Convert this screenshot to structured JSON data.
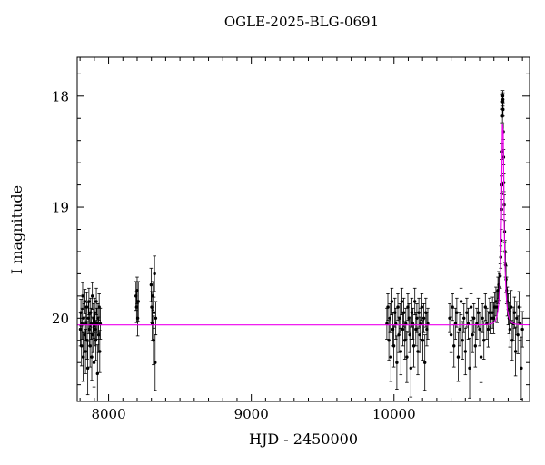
{
  "chart_data": {
    "type": "scatter",
    "title": "OGLE-2025-BLG-0691",
    "axes": {
      "x": {
        "label": "HJD - 2450000",
        "min": 7780,
        "max": 10950,
        "major_ticks": [
          8000,
          9000,
          10000
        ],
        "minor_step": 100
      },
      "y": {
        "label": "I magnitude",
        "min": 17.65,
        "max": 20.75,
        "major_ticks": [
          18,
          19,
          20
        ],
        "minor_step": 0.2,
        "inverted": true
      }
    },
    "style": {
      "background": "#ffffff",
      "frame_color": "#000000",
      "point_color": "#000000",
      "errorbar_color": "#000000",
      "model_color": "#ee00ee"
    },
    "model": {
      "type": "paczynski-microlensing",
      "t0": 10762,
      "tE": 22,
      "u0": 0.135,
      "baseline_mag": 20.06,
      "peak_mag": 17.88
    },
    "points": [
      [
        7802,
        20.1,
        0.15
      ],
      [
        7806,
        19.95,
        0.12
      ],
      [
        7810,
        20.25,
        0.18
      ],
      [
        7814,
        20.05,
        0.14
      ],
      [
        7818,
        19.8,
        0.12
      ],
      [
        7822,
        20.35,
        0.22
      ],
      [
        7826,
        20.0,
        0.13
      ],
      [
        7830,
        20.15,
        0.16
      ],
      [
        7834,
        19.85,
        0.11
      ],
      [
        7838,
        20.3,
        0.2
      ],
      [
        7842,
        20.05,
        0.15
      ],
      [
        7846,
        19.9,
        0.13
      ],
      [
        7850,
        20.2,
        0.17
      ],
      [
        7854,
        20.45,
        0.24
      ],
      [
        7858,
        20.0,
        0.14
      ],
      [
        7862,
        19.85,
        0.12
      ],
      [
        7866,
        20.1,
        0.15
      ],
      [
        7870,
        20.25,
        0.19
      ],
      [
        7874,
        19.95,
        0.13
      ],
      [
        7878,
        20.05,
        0.14
      ],
      [
        7882,
        20.35,
        0.21
      ],
      [
        7886,
        19.8,
        0.12
      ],
      [
        7890,
        20.15,
        0.16
      ],
      [
        7894,
        20.0,
        0.13
      ],
      [
        7898,
        20.4,
        0.22
      ],
      [
        7902,
        19.95,
        0.13
      ],
      [
        7906,
        20.1,
        0.15
      ],
      [
        7910,
        20.2,
        0.18
      ],
      [
        7914,
        19.85,
        0.12
      ],
      [
        7918,
        20.05,
        0.14
      ],
      [
        7922,
        20.5,
        0.26
      ],
      [
        7926,
        20.0,
        0.13
      ],
      [
        7930,
        20.15,
        0.16
      ],
      [
        7934,
        19.9,
        0.12
      ],
      [
        7938,
        20.3,
        0.19
      ],
      [
        7942,
        20.05,
        0.14
      ],
      [
        8192,
        19.8,
        0.13
      ],
      [
        8196,
        19.9,
        0.14
      ],
      [
        8200,
        19.75,
        0.12
      ],
      [
        8204,
        20.0,
        0.16
      ],
      [
        8208,
        19.85,
        0.18
      ],
      [
        8298,
        19.7,
        0.15
      ],
      [
        8302,
        19.9,
        0.14
      ],
      [
        8306,
        20.05,
        0.15
      ],
      [
        8310,
        19.8,
        0.13
      ],
      [
        8314,
        20.2,
        0.22
      ],
      [
        8318,
        19.95,
        0.14
      ],
      [
        8322,
        19.6,
        0.16
      ],
      [
        8326,
        20.4,
        0.25
      ],
      [
        8330,
        20.0,
        0.15
      ],
      [
        9950,
        20.05,
        0.14
      ],
      [
        9957,
        19.9,
        0.12
      ],
      [
        9964,
        20.2,
        0.18
      ],
      [
        9971,
        20.0,
        0.13
      ],
      [
        9978,
        20.35,
        0.22
      ],
      [
        9985,
        19.85,
        0.12
      ],
      [
        9992,
        20.1,
        0.15
      ],
      [
        9999,
        20.25,
        0.19
      ],
      [
        10006,
        19.95,
        0.13
      ],
      [
        10013,
        20.05,
        0.14
      ],
      [
        10020,
        20.4,
        0.24
      ],
      [
        10027,
        19.9,
        0.12
      ],
      [
        10034,
        20.15,
        0.16
      ],
      [
        10041,
        20.0,
        0.13
      ],
      [
        10048,
        20.3,
        0.21
      ],
      [
        10055,
        19.85,
        0.12
      ],
      [
        10062,
        20.1,
        0.15
      ],
      [
        10069,
        19.95,
        0.13
      ],
      [
        10076,
        20.2,
        0.17
      ],
      [
        10083,
        20.05,
        0.14
      ],
      [
        10090,
        20.35,
        0.23
      ],
      [
        10097,
        19.9,
        0.12
      ],
      [
        10104,
        20.0,
        0.13
      ],
      [
        10111,
        20.15,
        0.16
      ],
      [
        10118,
        20.45,
        0.26
      ],
      [
        10125,
        19.95,
        0.13
      ],
      [
        10132,
        20.05,
        0.14
      ],
      [
        10139,
        20.25,
        0.19
      ],
      [
        10146,
        19.85,
        0.12
      ],
      [
        10153,
        20.1,
        0.15
      ],
      [
        10160,
        20.0,
        0.13
      ],
      [
        10167,
        20.3,
        0.21
      ],
      [
        10174,
        19.95,
        0.13
      ],
      [
        10181,
        20.15,
        0.16
      ],
      [
        10188,
        20.05,
        0.14
      ],
      [
        10195,
        19.9,
        0.12
      ],
      [
        10202,
        20.2,
        0.18
      ],
      [
        10209,
        20.0,
        0.13
      ],
      [
        10216,
        20.4,
        0.25
      ],
      [
        10223,
        19.95,
        0.13
      ],
      [
        10230,
        20.1,
        0.15
      ],
      [
        10237,
        20.05,
        0.14
      ],
      [
        10390,
        20.0,
        0.13
      ],
      [
        10400,
        20.15,
        0.16
      ],
      [
        10410,
        19.9,
        0.12
      ],
      [
        10420,
        20.25,
        0.19
      ],
      [
        10430,
        20.05,
        0.14
      ],
      [
        10440,
        19.95,
        0.13
      ],
      [
        10450,
        20.35,
        0.22
      ],
      [
        10460,
        20.1,
        0.15
      ],
      [
        10470,
        19.85,
        0.12
      ],
      [
        10480,
        20.2,
        0.17
      ],
      [
        10490,
        20.0,
        0.13
      ],
      [
        10500,
        20.3,
        0.21
      ],
      [
        10510,
        19.95,
        0.13
      ],
      [
        10520,
        20.05,
        0.14
      ],
      [
        10530,
        20.45,
        0.27
      ],
      [
        10540,
        19.9,
        0.12
      ],
      [
        10550,
        20.15,
        0.16
      ],
      [
        10560,
        20.0,
        0.13
      ],
      [
        10570,
        20.25,
        0.19
      ],
      [
        10580,
        20.05,
        0.14
      ],
      [
        10590,
        19.95,
        0.13
      ],
      [
        10600,
        20.1,
        0.15
      ],
      [
        10610,
        20.35,
        0.23
      ],
      [
        10620,
        20.0,
        0.13
      ],
      [
        10630,
        20.2,
        0.17
      ],
      [
        10640,
        19.9,
        0.12
      ],
      [
        10650,
        20.05,
        0.14
      ],
      [
        10660,
        20.1,
        0.16
      ],
      [
        10670,
        19.95,
        0.13
      ],
      [
        10680,
        20.0,
        0.14
      ],
      [
        10690,
        19.95,
        0.14
      ],
      [
        10698,
        20.0,
        0.14
      ],
      [
        10706,
        19.9,
        0.13
      ],
      [
        10714,
        19.85,
        0.13
      ],
      [
        10722,
        19.9,
        0.14
      ],
      [
        10728,
        19.75,
        0.12
      ],
      [
        10734,
        19.7,
        0.12
      ],
      [
        10740,
        19.72,
        0.12
      ],
      [
        10744,
        19.62,
        0.11
      ],
      [
        10748,
        19.45,
        0.1
      ],
      [
        10751,
        19.3,
        0.1
      ],
      [
        10754,
        19.02,
        0.09
      ],
      [
        10756,
        18.8,
        0.08
      ],
      [
        10758,
        18.5,
        0.07
      ],
      [
        10760,
        18.18,
        0.06
      ],
      [
        10761,
        18.05,
        0.06
      ],
      [
        10762,
        18.0,
        0.05
      ],
      [
        10763,
        18.03,
        0.06
      ],
      [
        10764,
        18.12,
        0.06
      ],
      [
        10766,
        18.32,
        0.07
      ],
      [
        10768,
        18.55,
        0.07
      ],
      [
        10770,
        18.78,
        0.08
      ],
      [
        10772,
        18.98,
        0.09
      ],
      [
        10775,
        19.22,
        0.1
      ],
      [
        10778,
        19.4,
        0.1
      ],
      [
        10781,
        19.52,
        0.11
      ],
      [
        10785,
        19.65,
        0.12
      ],
      [
        10789,
        19.75,
        0.12
      ],
      [
        10794,
        19.85,
        0.13
      ],
      [
        10800,
        19.92,
        0.14
      ],
      [
        10806,
        20.0,
        0.14
      ],
      [
        10812,
        20.1,
        0.16
      ],
      [
        10820,
        19.9,
        0.15
      ],
      [
        10828,
        20.2,
        0.18
      ],
      [
        10836,
        20.05,
        0.15
      ],
      [
        10844,
        19.95,
        0.14
      ],
      [
        10852,
        20.3,
        0.22
      ],
      [
        10860,
        20.0,
        0.15
      ],
      [
        10868,
        20.15,
        0.17
      ],
      [
        10876,
        19.9,
        0.14
      ],
      [
        10884,
        20.05,
        0.15
      ],
      [
        10892,
        20.45,
        0.28
      ],
      [
        10900,
        20.1,
        0.16
      ]
    ]
  }
}
